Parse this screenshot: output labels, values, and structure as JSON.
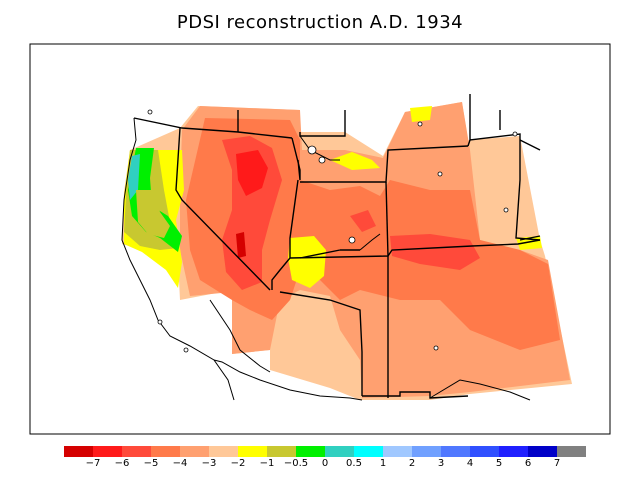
{
  "title": "PDSI reconstruction A.D. 1934",
  "legend": {
    "colors": [
      "#d50000",
      "#ff1a1a",
      "#ff4a3a",
      "#ff7a4a",
      "#ffa070",
      "#ffc898",
      "#ffff00",
      "#c8c830",
      "#00f000",
      "#30d0c0",
      "#00ffff",
      "#a0c8ff",
      "#70a0ff",
      "#5078ff",
      "#3050ff",
      "#2020ff",
      "#0000c8",
      "#808080"
    ],
    "labels": [
      "−7",
      "−6",
      "−5",
      "−4",
      "−3",
      "−2",
      "−1",
      "−0.5",
      "0",
      "0.5",
      "1",
      "2",
      "3",
      "4",
      "5",
      "6",
      "7"
    ]
  }
}
